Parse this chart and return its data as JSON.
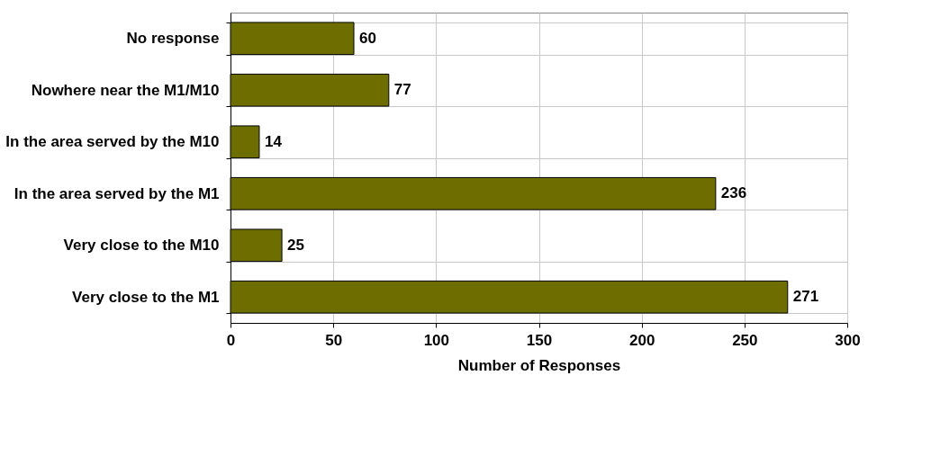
{
  "chart_data": {
    "type": "bar",
    "orientation": "horizontal",
    "xlabel": "Number of Responses",
    "categories": [
      "No response",
      "Nowhere near the M1/M10",
      "In the area served by the M10",
      "In the area served by the M1",
      "Very close to the M10",
      "Very close to the M1"
    ],
    "values": [
      60,
      77,
      14,
      236,
      25,
      271
    ],
    "color": "#6e6e00",
    "xlim": [
      0,
      300
    ],
    "xticks": [
      0,
      50,
      100,
      150,
      200,
      250,
      300
    ],
    "grid": true,
    "data_labels": true
  }
}
